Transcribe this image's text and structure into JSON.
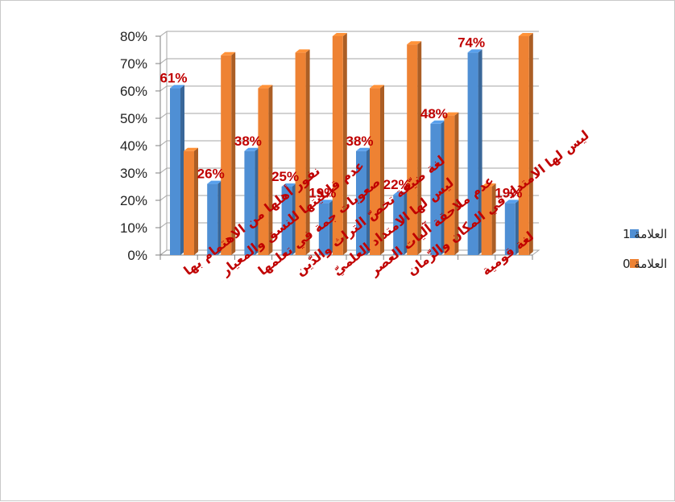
{
  "chart_data": {
    "type": "bar",
    "categories": [
      "نفور أهلها من الاهتمام بها",
      "عدم قابليتها للنسق والمعيار",
      "صعوبات جمة في تعلمها",
      "لغة ضيّقة تخصّ التراث والدّين",
      "ليس لها الامتداد العلميّ",
      "عدم ملاحقة آليات العصر",
      "ليس لها الامتداد في المكان والزّمان",
      "",
      "لغة قومية",
      ""
    ],
    "series": [
      {
        "name": "العلامة 1",
        "color": "#4f8fd4",
        "values": [
          61,
          26,
          38,
          25,
          19,
          38,
          22,
          48,
          74,
          19
        ]
      },
      {
        "name": "العلامة 0",
        "color": "#ee8233",
        "values": [
          38,
          73,
          61,
          74,
          80,
          61,
          77,
          51,
          25,
          80
        ]
      }
    ],
    "data_labels": [
      "61%",
      "26%",
      "38%",
      "25%",
      "19%",
      "38%",
      "22%",
      "48%",
      "74%",
      "19%"
    ],
    "y_ticks": [
      "0%",
      "10%",
      "20%",
      "30%",
      "40%",
      "50%",
      "60%",
      "70%",
      "80%"
    ],
    "ylim": [
      0,
      80
    ],
    "grid": true,
    "legend_position": "right"
  }
}
